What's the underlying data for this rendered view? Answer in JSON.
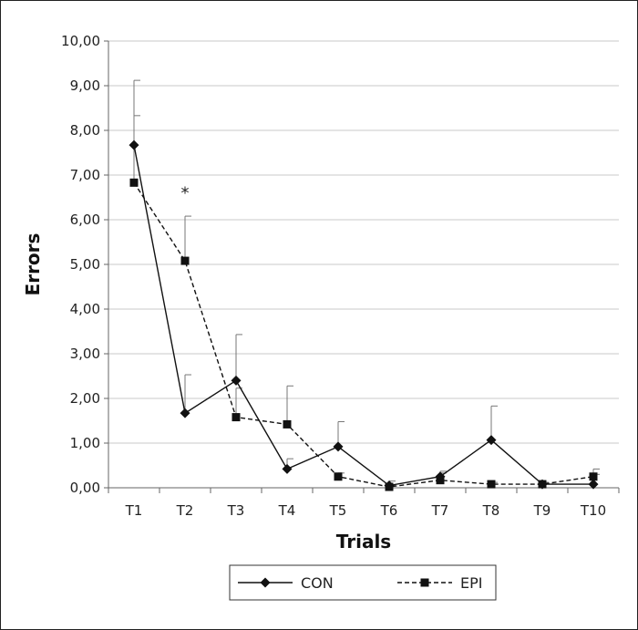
{
  "chart_data": {
    "type": "line",
    "title": "",
    "xlabel": "Trials",
    "ylabel": "Errors",
    "categories": [
      "T1",
      "T2",
      "T3",
      "T4",
      "T5",
      "T6",
      "T7",
      "T8",
      "T9",
      "T10"
    ],
    "ylim": [
      0,
      10
    ],
    "yticks": [
      "0,00",
      "1,00",
      "2,00",
      "3,00",
      "4,00",
      "5,00",
      "6,00",
      "7,00",
      "8,00",
      "9,00",
      "10,00"
    ],
    "grid": "horizontal",
    "legend_position": "bottom",
    "series": [
      {
        "name": "CON",
        "style": "solid",
        "marker": "diamond",
        "color": "#111111",
        "values": [
          7.67,
          1.67,
          2.4,
          0.42,
          0.92,
          0.05,
          0.25,
          1.07,
          0.08,
          0.08
        ],
        "error_upper": [
          9.12,
          2.53,
          3.43,
          0.65,
          1.48,
          0.15,
          0.37,
          1.83,
          0.12,
          0.3
        ]
      },
      {
        "name": "EPI",
        "style": "dashed",
        "marker": "square",
        "color": "#111111",
        "values": [
          6.83,
          5.08,
          1.58,
          1.42,
          0.25,
          0.02,
          0.17,
          0.08,
          0.08,
          0.25
        ],
        "error_upper": [
          8.33,
          6.08,
          2.23,
          2.28,
          0.33,
          0.06,
          0.33,
          0.12,
          0.12,
          0.42
        ]
      }
    ],
    "annotations": [
      {
        "text": "*",
        "category": "T2",
        "y": 6.6
      }
    ]
  }
}
